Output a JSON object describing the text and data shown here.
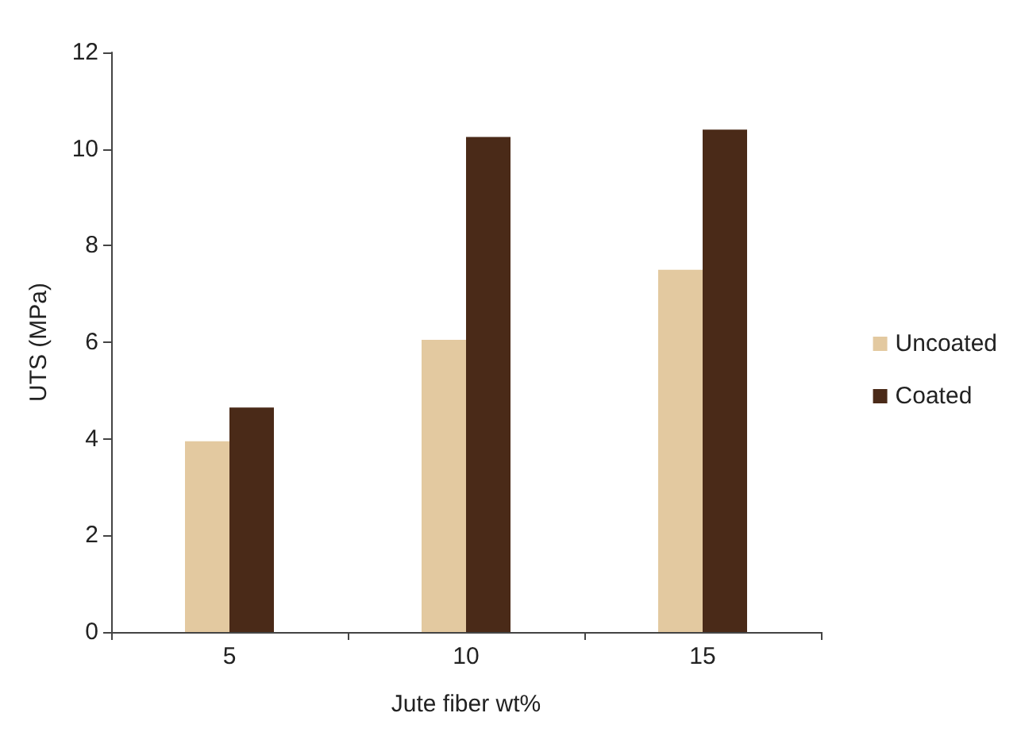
{
  "chart_data": {
    "type": "bar",
    "xlabel": "Jute fiber wt%",
    "ylabel": "UTS (MPa)",
    "categories": [
      "5",
      "10",
      "15"
    ],
    "series": [
      {
        "name": "Uncoated",
        "color": "#e3c9a0",
        "values": [
          3.95,
          6.05,
          7.5
        ]
      },
      {
        "name": "Coated",
        "color": "#4a2a18",
        "values": [
          4.65,
          10.25,
          10.4
        ]
      }
    ],
    "ylim": [
      0,
      12
    ],
    "yticks": [
      0,
      2,
      4,
      6,
      8,
      10,
      12
    ],
    "grid": false,
    "legend": "right"
  }
}
